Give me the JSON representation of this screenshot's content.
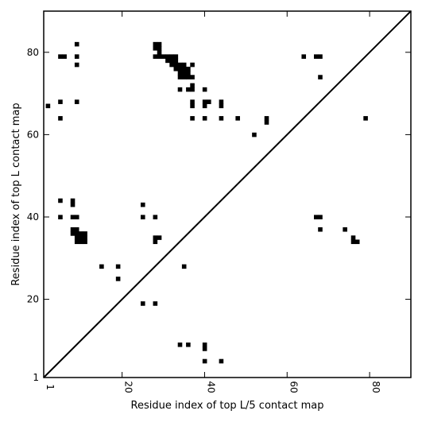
{
  "chart_data": {
    "type": "heatmap",
    "title": "",
    "xlabel": "Residue index of top L/5 contact map",
    "ylabel": "Residue index of top L contact map",
    "xlim": [
      1,
      90
    ],
    "ylim": [
      1,
      90
    ],
    "x_ticks": [
      1,
      20,
      40,
      60,
      80
    ],
    "y_ticks": [
      1,
      20,
      40,
      60,
      80
    ],
    "diagonal": true,
    "colors": {
      "contact": "#000000",
      "background": "#ffffff",
      "axes": "#000000"
    },
    "upper_contacts": [
      [
        2,
        67
      ],
      [
        5,
        79
      ],
      [
        6,
        79
      ],
      [
        9,
        82
      ],
      [
        9,
        79
      ],
      [
        9,
        77
      ],
      [
        5,
        68
      ],
      [
        9,
        68
      ],
      [
        5,
        64
      ],
      [
        28,
        82
      ],
      [
        28,
        81
      ],
      [
        29,
        82
      ],
      [
        29,
        81
      ],
      [
        28,
        79
      ],
      [
        29,
        80
      ],
      [
        29,
        79
      ],
      [
        30,
        79
      ],
      [
        31,
        79
      ],
      [
        32,
        79
      ],
      [
        33,
        79
      ],
      [
        31,
        78
      ],
      [
        32,
        78
      ],
      [
        33,
        78
      ],
      [
        32,
        77
      ],
      [
        33,
        77
      ],
      [
        34,
        77
      ],
      [
        35,
        77
      ],
      [
        33,
        76
      ],
      [
        34,
        76
      ],
      [
        35,
        76
      ],
      [
        36,
        76
      ],
      [
        34,
        75
      ],
      [
        35,
        75
      ],
      [
        36,
        75
      ],
      [
        34,
        74
      ],
      [
        35,
        74
      ],
      [
        36,
        74
      ],
      [
        37,
        74
      ],
      [
        37,
        77
      ],
      [
        37,
        72
      ],
      [
        37,
        71
      ],
      [
        36,
        71
      ],
      [
        34,
        71
      ],
      [
        40,
        71
      ],
      [
        37,
        68
      ],
      [
        37,
        67
      ],
      [
        40,
        68
      ],
      [
        41,
        68
      ],
      [
        40,
        67
      ],
      [
        44,
        68
      ],
      [
        44,
        67
      ],
      [
        37,
        64
      ],
      [
        40,
        64
      ],
      [
        44,
        64
      ],
      [
        48,
        64
      ],
      [
        55,
        64
      ],
      [
        55,
        63
      ],
      [
        52,
        60
      ],
      [
        64,
        79
      ],
      [
        67,
        79
      ],
      [
        68,
        79
      ],
      [
        68,
        74
      ],
      [
        79,
        64
      ]
    ],
    "lower_contacts": [
      [
        5,
        44
      ],
      [
        5,
        40
      ],
      [
        8,
        44
      ],
      [
        8,
        43
      ],
      [
        8,
        40
      ],
      [
        9,
        40
      ],
      [
        8,
        37
      ],
      [
        9,
        37
      ],
      [
        8,
        36
      ],
      [
        9,
        36
      ],
      [
        9,
        35
      ],
      [
        10,
        35
      ],
      [
        11,
        35
      ],
      [
        9,
        34
      ],
      [
        10,
        34
      ],
      [
        11,
        34
      ],
      [
        10,
        36
      ],
      [
        11,
        36
      ],
      [
        15,
        28
      ],
      [
        19,
        28
      ],
      [
        19,
        25
      ],
      [
        25,
        43
      ],
      [
        25,
        40
      ],
      [
        28,
        40
      ],
      [
        28,
        35
      ],
      [
        29,
        35
      ],
      [
        28,
        34
      ],
      [
        35,
        28
      ],
      [
        25,
        19
      ],
      [
        28,
        19
      ],
      [
        34,
        9
      ],
      [
        36,
        9
      ],
      [
        40,
        9
      ],
      [
        40,
        8
      ],
      [
        40,
        5
      ],
      [
        44,
        5
      ],
      [
        67,
        40
      ],
      [
        68,
        40
      ],
      [
        68,
        37
      ],
      [
        74,
        37
      ],
      [
        76,
        35
      ],
      [
        76,
        34
      ],
      [
        77,
        34
      ]
    ]
  }
}
